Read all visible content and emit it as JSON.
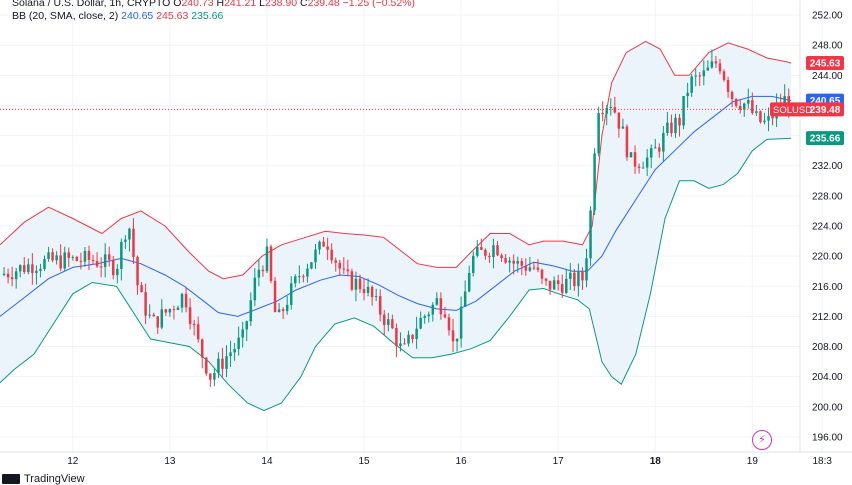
{
  "legend": {
    "line1": {
      "symbol": "Solana / U.S. Dollar, 1h, CRYPTO",
      "o_label": "O",
      "o_value": "240.73",
      "h_label": "H",
      "h_value": "241.21",
      "l_label": "L",
      "l_value": "238.90",
      "c_label": "C",
      "c_value": "239.48",
      "change": "−1.25 (−0.52%)"
    },
    "line2": {
      "indicator": "BB (20, SMA, close, 2)",
      "basis": "240.65",
      "upper": "245.63",
      "lower": "235.66"
    }
  },
  "footer": {
    "brand": "TradingView"
  },
  "colors": {
    "up": "#089981",
    "down": "#f23645",
    "basis": "#2962ff",
    "upper": "#f23645",
    "lower": "#089981",
    "band_fill": "#eaf3fb",
    "price_line": "#f23645",
    "grid": "#f0f3fa"
  },
  "chart_data": {
    "type": "candlestick",
    "y_range": [
      194,
      254
    ],
    "y_ticks": [
      196,
      200,
      204,
      208,
      212,
      216,
      220,
      224,
      228,
      232,
      236,
      240,
      244,
      248,
      252
    ],
    "x_range": [
      11.25,
      19.8
    ],
    "x_ticks": [
      {
        "pos": 12,
        "label": "12",
        "bold": false
      },
      {
        "pos": 13,
        "label": "13",
        "bold": false
      },
      {
        "pos": 14,
        "label": "14",
        "bold": false
      },
      {
        "pos": 15,
        "label": "15",
        "bold": false
      },
      {
        "pos": 16,
        "label": "16",
        "bold": false
      },
      {
        "pos": 17,
        "label": "17",
        "bold": false
      },
      {
        "pos": 18,
        "label": "18",
        "bold": true
      },
      {
        "pos": 19,
        "label": "19",
        "bold": false
      },
      {
        "pos": 19.72,
        "label": "18:3",
        "bold": false
      }
    ],
    "last_price": {
      "label": "SOLUSD",
      "value": "239.48",
      "y": 239.48
    },
    "price_tags": [
      {
        "value": "245.63",
        "y": 245.63,
        "color": "#f23645"
      },
      {
        "value": "240.65",
        "y": 240.65,
        "color": "#2962ff"
      },
      {
        "value": "235.66",
        "y": 235.66,
        "color": "#089981"
      }
    ],
    "key_closes": [
      {
        "x": 11.25,
        "close": 217.5
      },
      {
        "x": 11.6,
        "close": 219
      },
      {
        "x": 11.9,
        "close": 219.5
      },
      {
        "x": 12.2,
        "close": 219.5
      },
      {
        "x": 12.45,
        "close": 218.6
      },
      {
        "x": 12.57,
        "close": 225
      },
      {
        "x": 12.68,
        "close": 215
      },
      {
        "x": 12.82,
        "close": 211
      },
      {
        "x": 13.0,
        "close": 213
      },
      {
        "x": 13.15,
        "close": 215
      },
      {
        "x": 13.3,
        "close": 208
      },
      {
        "x": 13.42,
        "close": 204
      },
      {
        "x": 13.6,
        "close": 207
      },
      {
        "x": 13.75,
        "close": 209
      },
      {
        "x": 13.9,
        "close": 218
      },
      {
        "x": 14.0,
        "close": 220
      },
      {
        "x": 14.1,
        "close": 211
      },
      {
        "x": 14.2,
        "close": 214
      },
      {
        "x": 14.35,
        "close": 218
      },
      {
        "x": 14.55,
        "close": 221
      },
      {
        "x": 14.6,
        "close": 222.5
      },
      {
        "x": 14.8,
        "close": 217
      },
      {
        "x": 15.0,
        "close": 216
      },
      {
        "x": 15.15,
        "close": 213
      },
      {
        "x": 15.3,
        "close": 210
      },
      {
        "x": 15.4,
        "close": 207
      },
      {
        "x": 15.55,
        "close": 211
      },
      {
        "x": 15.75,
        "close": 214
      },
      {
        "x": 15.85,
        "close": 213
      },
      {
        "x": 15.92,
        "close": 208
      },
      {
        "x": 16.0,
        "close": 212
      },
      {
        "x": 16.1,
        "close": 219.5
      },
      {
        "x": 16.35,
        "close": 221.5
      },
      {
        "x": 16.55,
        "close": 219
      },
      {
        "x": 16.75,
        "close": 218.5
      },
      {
        "x": 16.85,
        "close": 216
      },
      {
        "x": 17.1,
        "close": 216.5
      },
      {
        "x": 17.25,
        "close": 217
      },
      {
        "x": 17.32,
        "close": 223
      },
      {
        "x": 17.4,
        "close": 240
      },
      {
        "x": 17.55,
        "close": 240.5
      },
      {
        "x": 17.65,
        "close": 237
      },
      {
        "x": 17.75,
        "close": 232.5
      },
      {
        "x": 17.95,
        "close": 233
      },
      {
        "x": 18.15,
        "close": 237
      },
      {
        "x": 18.25,
        "close": 238
      },
      {
        "x": 18.35,
        "close": 243
      },
      {
        "x": 18.5,
        "close": 244
      },
      {
        "x": 18.65,
        "close": 246
      },
      {
        "x": 18.8,
        "close": 241
      },
      {
        "x": 18.95,
        "close": 240
      },
      {
        "x": 19.05,
        "close": 238
      },
      {
        "x": 19.15,
        "close": 237.5
      },
      {
        "x": 19.3,
        "close": 240.5
      },
      {
        "x": 19.38,
        "close": 241
      },
      {
        "x": 19.4,
        "close": 239.48
      }
    ],
    "upper_band": [
      {
        "x": 11.25,
        "y": 221.5
      },
      {
        "x": 11.5,
        "y": 224.5
      },
      {
        "x": 11.75,
        "y": 226.5
      },
      {
        "x": 12.0,
        "y": 225
      },
      {
        "x": 12.3,
        "y": 223
      },
      {
        "x": 12.5,
        "y": 225
      },
      {
        "x": 12.7,
        "y": 226
      },
      {
        "x": 12.95,
        "y": 224
      },
      {
        "x": 13.2,
        "y": 220.5
      },
      {
        "x": 13.4,
        "y": 218
      },
      {
        "x": 13.55,
        "y": 217
      },
      {
        "x": 13.75,
        "y": 217.5
      },
      {
        "x": 13.95,
        "y": 220
      },
      {
        "x": 14.15,
        "y": 221.5
      },
      {
        "x": 14.4,
        "y": 222.5
      },
      {
        "x": 14.6,
        "y": 223.3
      },
      {
        "x": 14.8,
        "y": 223
      },
      {
        "x": 15.0,
        "y": 222.8
      },
      {
        "x": 15.2,
        "y": 222.5
      },
      {
        "x": 15.4,
        "y": 220.5
      },
      {
        "x": 15.55,
        "y": 219
      },
      {
        "x": 15.75,
        "y": 218.5
      },
      {
        "x": 15.95,
        "y": 218.5
      },
      {
        "x": 16.1,
        "y": 220.5
      },
      {
        "x": 16.3,
        "y": 223
      },
      {
        "x": 16.5,
        "y": 223
      },
      {
        "x": 16.7,
        "y": 221.5
      },
      {
        "x": 16.85,
        "y": 222
      },
      {
        "x": 17.05,
        "y": 222
      },
      {
        "x": 17.25,
        "y": 221.5
      },
      {
        "x": 17.35,
        "y": 224
      },
      {
        "x": 17.45,
        "y": 236
      },
      {
        "x": 17.55,
        "y": 243
      },
      {
        "x": 17.7,
        "y": 247
      },
      {
        "x": 17.9,
        "y": 248.5
      },
      {
        "x": 18.05,
        "y": 247.5
      },
      {
        "x": 18.2,
        "y": 244
      },
      {
        "x": 18.35,
        "y": 244
      },
      {
        "x": 18.55,
        "y": 247
      },
      {
        "x": 18.75,
        "y": 248.3
      },
      {
        "x": 18.95,
        "y": 247.5
      },
      {
        "x": 19.15,
        "y": 246.3
      },
      {
        "x": 19.35,
        "y": 245.8
      },
      {
        "x": 19.4,
        "y": 245.63
      }
    ],
    "basis_band": [
      {
        "x": 11.25,
        "y": 212
      },
      {
        "x": 11.5,
        "y": 214.5
      },
      {
        "x": 11.75,
        "y": 217
      },
      {
        "x": 12.0,
        "y": 218.5
      },
      {
        "x": 12.25,
        "y": 219
      },
      {
        "x": 12.5,
        "y": 219.7
      },
      {
        "x": 12.7,
        "y": 219
      },
      {
        "x": 12.95,
        "y": 217.5
      },
      {
        "x": 13.15,
        "y": 216
      },
      {
        "x": 13.35,
        "y": 214
      },
      {
        "x": 13.5,
        "y": 212.5
      },
      {
        "x": 13.7,
        "y": 212
      },
      {
        "x": 13.9,
        "y": 213
      },
      {
        "x": 14.1,
        "y": 214
      },
      {
        "x": 14.3,
        "y": 215.5
      },
      {
        "x": 14.55,
        "y": 216.8
      },
      {
        "x": 14.75,
        "y": 217.5
      },
      {
        "x": 14.95,
        "y": 217.3
      },
      {
        "x": 15.15,
        "y": 216.2
      },
      {
        "x": 15.35,
        "y": 214.8
      },
      {
        "x": 15.55,
        "y": 213.7
      },
      {
        "x": 15.75,
        "y": 213
      },
      {
        "x": 15.95,
        "y": 212.8
      },
      {
        "x": 16.15,
        "y": 214
      },
      {
        "x": 16.35,
        "y": 216
      },
      {
        "x": 16.55,
        "y": 218
      },
      {
        "x": 16.75,
        "y": 219.2
      },
      {
        "x": 16.95,
        "y": 218.7
      },
      {
        "x": 17.15,
        "y": 218
      },
      {
        "x": 17.3,
        "y": 218
      },
      {
        "x": 17.45,
        "y": 220
      },
      {
        "x": 17.6,
        "y": 223.5
      },
      {
        "x": 17.8,
        "y": 227.5
      },
      {
        "x": 18.0,
        "y": 231.5
      },
      {
        "x": 18.2,
        "y": 234
      },
      {
        "x": 18.4,
        "y": 236.5
      },
      {
        "x": 18.6,
        "y": 238.5
      },
      {
        "x": 18.8,
        "y": 240.5
      },
      {
        "x": 19.0,
        "y": 241.2
      },
      {
        "x": 19.2,
        "y": 241.2
      },
      {
        "x": 19.4,
        "y": 240.65
      }
    ],
    "lower_band": [
      {
        "x": 11.25,
        "y": 203.2
      },
      {
        "x": 11.4,
        "y": 205
      },
      {
        "x": 11.6,
        "y": 207
      },
      {
        "x": 11.8,
        "y": 211
      },
      {
        "x": 12.0,
        "y": 215
      },
      {
        "x": 12.2,
        "y": 216.5
      },
      {
        "x": 12.45,
        "y": 216
      },
      {
        "x": 12.65,
        "y": 212
      },
      {
        "x": 12.8,
        "y": 209
      },
      {
        "x": 13.0,
        "y": 208.5
      },
      {
        "x": 13.2,
        "y": 208
      },
      {
        "x": 13.4,
        "y": 206
      },
      {
        "x": 13.6,
        "y": 203
      },
      {
        "x": 13.8,
        "y": 200.5
      },
      {
        "x": 13.97,
        "y": 199.5
      },
      {
        "x": 14.15,
        "y": 200.5
      },
      {
        "x": 14.35,
        "y": 204
      },
      {
        "x": 14.5,
        "y": 208
      },
      {
        "x": 14.7,
        "y": 211
      },
      {
        "x": 14.9,
        "y": 211.8
      },
      {
        "x": 15.1,
        "y": 210.7
      },
      {
        "x": 15.3,
        "y": 208.5
      },
      {
        "x": 15.5,
        "y": 206.5
      },
      {
        "x": 15.7,
        "y": 206.5
      },
      {
        "x": 15.9,
        "y": 207
      },
      {
        "x": 16.1,
        "y": 207.7
      },
      {
        "x": 16.3,
        "y": 208.8
      },
      {
        "x": 16.5,
        "y": 212
      },
      {
        "x": 16.7,
        "y": 215.5
      },
      {
        "x": 16.85,
        "y": 215.7
      },
      {
        "x": 17.05,
        "y": 214.8
      },
      {
        "x": 17.2,
        "y": 214.2
      },
      {
        "x": 17.32,
        "y": 213
      },
      {
        "x": 17.45,
        "y": 206
      },
      {
        "x": 17.55,
        "y": 204
      },
      {
        "x": 17.65,
        "y": 203
      },
      {
        "x": 17.8,
        "y": 207
      },
      {
        "x": 17.95,
        "y": 215
      },
      {
        "x": 18.1,
        "y": 225
      },
      {
        "x": 18.25,
        "y": 230
      },
      {
        "x": 18.4,
        "y": 230
      },
      {
        "x": 18.55,
        "y": 229
      },
      {
        "x": 18.7,
        "y": 229.5
      },
      {
        "x": 18.85,
        "y": 231
      },
      {
        "x": 19.0,
        "y": 234
      },
      {
        "x": 19.15,
        "y": 235.5
      },
      {
        "x": 19.4,
        "y": 235.66
      }
    ]
  }
}
